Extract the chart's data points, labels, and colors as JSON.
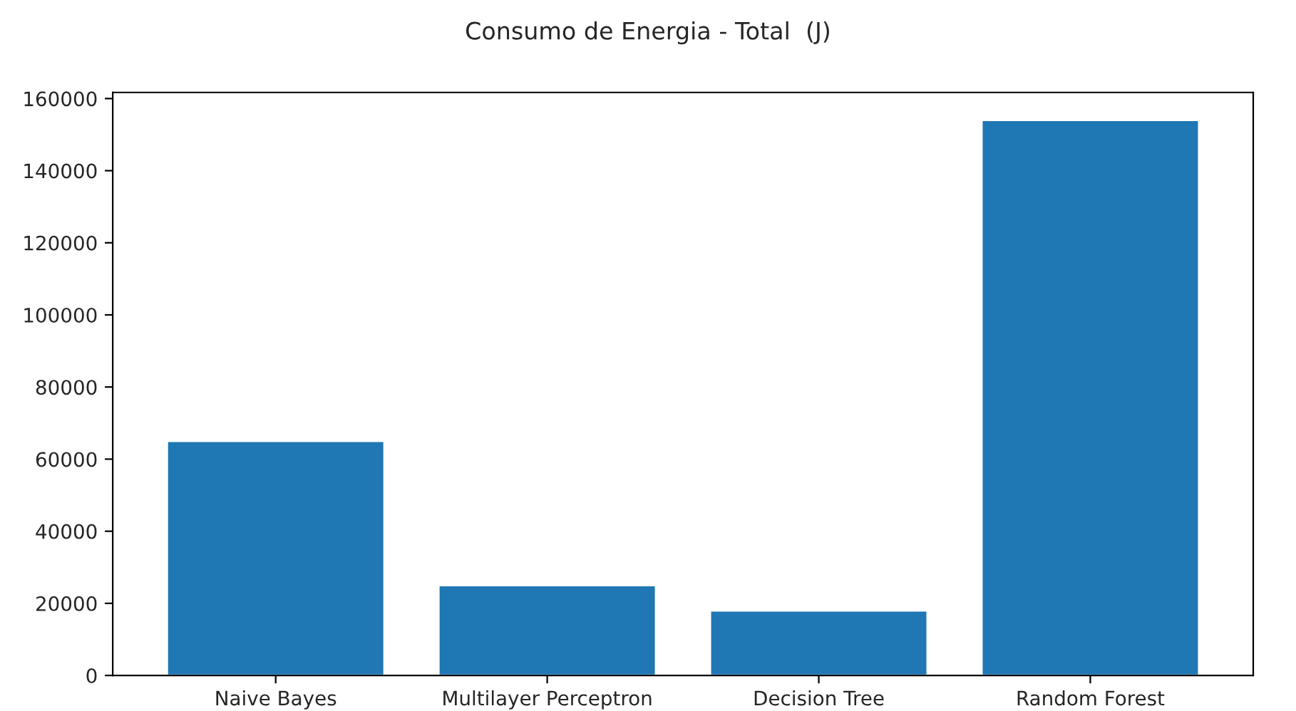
{
  "chart_data": {
    "type": "bar",
    "title": "Consumo de Energia - Total  (J)",
    "categories": [
      "Naive Bayes",
      "Multilayer Perceptron",
      "Decision Tree",
      "Random Forest"
    ],
    "values": [
      65000,
      25000,
      18000,
      154000
    ],
    "color": "#1f77b4",
    "ylim": [
      0,
      161700
    ],
    "yticks": [
      0,
      20000,
      40000,
      60000,
      80000,
      100000,
      120000,
      140000,
      160000
    ],
    "grid": false,
    "legend": false
  }
}
